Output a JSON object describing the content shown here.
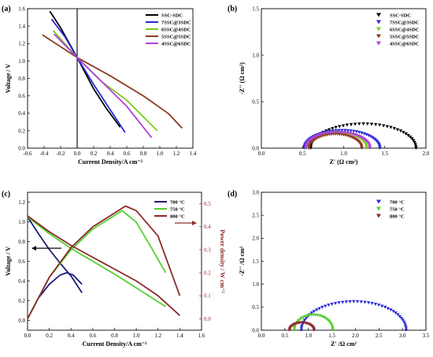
{
  "chart_data": [
    {
      "panel": "(a)",
      "type": "line",
      "xlabel": "Current Density/A cm⁻²",
      "ylabel": "Voltage / V",
      "xlim": [
        -0.6,
        1.4
      ],
      "ylim": [
        0,
        1.6
      ],
      "xticks": [
        "-0.6",
        "-0.4",
        "-0.2",
        "0.0",
        "0.2",
        "0.4",
        "0.6",
        "0.8",
        "1.0",
        "1.2",
        "1.4"
      ],
      "yticks": [
        "0.0",
        "0.2",
        "0.4",
        "0.6",
        "0.8",
        "1.0",
        "1.2",
        "1.4",
        "1.6"
      ],
      "legend_position": "top-right",
      "vertical_line_x": 0,
      "series": [
        {
          "name": "SSC-SDC",
          "color": "#000000",
          "x": [
            -0.33,
            -0.2,
            0,
            0.2,
            0.35,
            0.52
          ],
          "y": [
            1.57,
            1.38,
            1.04,
            0.68,
            0.46,
            0.24
          ]
        },
        {
          "name": "7SSC@3SDC",
          "color": "#2a2ad8",
          "x": [
            -0.31,
            -0.15,
            0,
            0.2,
            0.4,
            0.58
          ],
          "y": [
            1.48,
            1.28,
            1.04,
            0.73,
            0.44,
            0.18
          ]
        },
        {
          "name": "6SSC@4SDC",
          "color": "#7ec820",
          "x": [
            -0.29,
            0,
            0.3,
            0.6,
            0.97
          ],
          "y": [
            1.35,
            1.04,
            0.76,
            0.55,
            0.2
          ]
        },
        {
          "name": "5SSC@5SDC",
          "color": "#8c3c1c",
          "x": [
            -0.42,
            0,
            0.4,
            0.8,
            1.1,
            1.27
          ],
          "y": [
            1.3,
            1.04,
            0.83,
            0.6,
            0.4,
            0.23
          ]
        },
        {
          "name": "4SSC@6SDC",
          "color": "#b040d8",
          "x": [
            -0.28,
            0,
            0.3,
            0.6,
            0.9
          ],
          "y": [
            1.31,
            1.04,
            0.76,
            0.48,
            0.12
          ]
        }
      ]
    },
    {
      "panel": "(b)",
      "type": "scatter",
      "xlabel": "Z' (Ω cm²)",
      "ylabel": "-Z'' (Ω cm²)",
      "xlim": [
        0,
        2.0
      ],
      "ylim": [
        0,
        1.5
      ],
      "xticks": [
        "0.0",
        "0.5",
        "1.0",
        "1.5",
        "2.0"
      ],
      "yticks": [
        "0.0",
        "0.5",
        "1.0",
        "1.5"
      ],
      "legend_position": "top-right",
      "series": [
        {
          "name": "SSC-SDC",
          "color": "#000000",
          "marker": "triangle-down",
          "arc": {
            "start": 0.6,
            "end": 1.88,
            "peak": 0.26
          }
        },
        {
          "name": "7SSC@3SDC",
          "color": "#2a2ad8",
          "marker": "triangle-down",
          "arc": {
            "start": 0.52,
            "end": 1.44,
            "peak": 0.19
          }
        },
        {
          "name": "6SSC@4SDC",
          "color": "#7ec820",
          "marker": "triangle-down",
          "arc": {
            "start": 0.55,
            "end": 1.28,
            "peak": 0.17
          }
        },
        {
          "name": "5SSC@5SDC",
          "color": "#8c3c1c",
          "marker": "triangle-down",
          "arc": {
            "start": 0.58,
            "end": 1.22,
            "peak": 0.15
          }
        },
        {
          "name": "4SSC@6SDC",
          "color": "#b040d8",
          "marker": "triangle-down",
          "arc": {
            "start": 0.54,
            "end": 1.32,
            "peak": 0.17
          }
        }
      ]
    },
    {
      "panel": "(c)",
      "type": "line",
      "xlabel": "Current Density/A cm⁻²",
      "ylabel": "Voltage / V",
      "ylabel_right": "Power density / W cm⁻²",
      "xlim": [
        0,
        1.6
      ],
      "ylim": [
        -0.1,
        1.3
      ],
      "ylim_right": [
        -0.05,
        0.55
      ],
      "xticks": [
        "0.0",
        "0.2",
        "0.4",
        "0.6",
        "0.8",
        "1.0",
        "1.2",
        "1.4",
        "1.6"
      ],
      "yticks": [
        "0.0",
        "0.2",
        "0.4",
        "0.6",
        "0.8",
        "1.0",
        "1.2"
      ],
      "yticks_right": [
        "0.0",
        "0.1",
        "0.2",
        "0.3",
        "0.4",
        "0.5"
      ],
      "legend_position": "top-right",
      "series": [
        {
          "name": "700 °C",
          "color": "#1c1c7c",
          "voltage": {
            "x": [
              0,
              0.1,
              0.2,
              0.3,
              0.4,
              0.5
            ],
            "y": [
              1.05,
              0.88,
              0.72,
              0.58,
              0.45,
              0.28
            ]
          },
          "power": {
            "x": [
              0,
              0.1,
              0.2,
              0.3,
              0.36,
              0.42,
              0.5
            ],
            "y": [
              0,
              0.09,
              0.15,
              0.19,
              0.2,
              0.19,
              0.15
            ]
          }
        },
        {
          "name": "750 °C",
          "color": "#55d030",
          "voltage": {
            "x": [
              0,
              0.2,
              0.4,
              0.6,
              0.8,
              1.0,
              1.27
            ],
            "y": [
              1.05,
              0.88,
              0.73,
              0.6,
              0.47,
              0.33,
              0.14
            ]
          },
          "power": {
            "x": [
              0,
              0.2,
              0.4,
              0.6,
              0.87,
              1.0,
              1.15,
              1.27
            ],
            "y": [
              0,
              0.18,
              0.3,
              0.39,
              0.47,
              0.42,
              0.3,
              0.2
            ]
          }
        },
        {
          "name": "800 °C",
          "color": "#8a2a2a",
          "voltage": {
            "x": [
              0,
              0.2,
              0.4,
              0.6,
              0.8,
              1.0,
              1.2,
              1.4
            ],
            "y": [
              1.06,
              0.9,
              0.76,
              0.64,
              0.52,
              0.4,
              0.25,
              0.05
            ]
          },
          "power": {
            "x": [
              0,
              0.2,
              0.4,
              0.6,
              0.9,
              1.0,
              1.2,
              1.4
            ],
            "y": [
              0,
              0.18,
              0.31,
              0.4,
              0.49,
              0.47,
              0.36,
              0.1
            ]
          }
        }
      ]
    },
    {
      "panel": "(d)",
      "type": "scatter",
      "xlabel": "Z' /Ω cm²",
      "ylabel": "-Z'' /Ω cm²",
      "xlim": [
        0,
        3.5
      ],
      "ylim": [
        0,
        3.0
      ],
      "xticks": [
        "0.0",
        "0.5",
        "1.0",
        "1.5",
        "2.0",
        "2.5",
        "3.0",
        "3.5"
      ],
      "yticks": [
        "0.0",
        "0.5",
        "1.0",
        "1.5",
        "2.0",
        "2.5",
        "3.0"
      ],
      "legend_position": "top-right",
      "series": [
        {
          "name": "700 °C",
          "color": "#2a2ad8",
          "marker": "triangle-down",
          "arc": {
            "start": 0.85,
            "end": 3.08,
            "peak": 0.62
          }
        },
        {
          "name": "750 °C",
          "color": "#55d030",
          "marker": "triangle-down",
          "arc": {
            "start": 0.7,
            "end": 1.52,
            "peak": 0.33
          }
        },
        {
          "name": "800 °C",
          "color": "#8a2a2a",
          "marker": "triangle-down",
          "arc": {
            "start": 0.6,
            "end": 1.12,
            "peak": 0.16
          }
        }
      ]
    }
  ]
}
